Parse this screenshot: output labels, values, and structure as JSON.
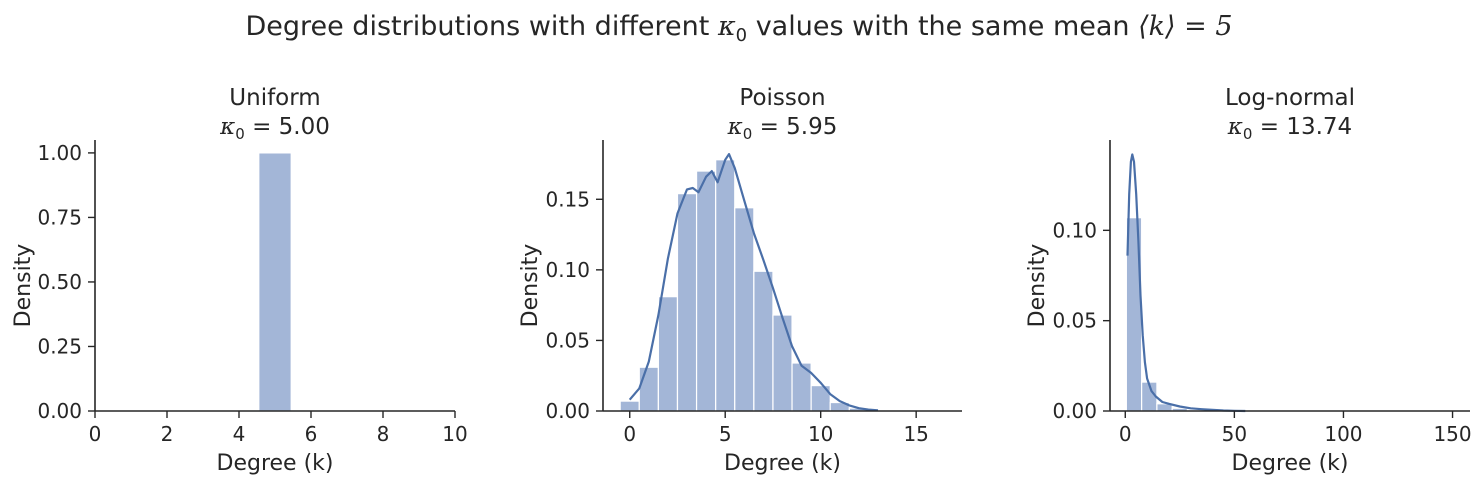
{
  "figure": {
    "title_prefix": "Degree distributions with different ",
    "title_kappa": "κ",
    "title_kappa_sub": "0",
    "title_middle": " values with the same mean ",
    "title_mean_expr": "⟨k⟩ = 5"
  },
  "colors": {
    "bar": "#a3b6d7",
    "line": "#4a6fa8",
    "axis": "#262626",
    "text": "#262626"
  },
  "chart_data": [
    {
      "type": "bar",
      "title_line1": "Uniform",
      "kappa_symbol": "κ",
      "kappa_sub": "0",
      "kappa_value": "= 5.00",
      "xlabel": "Degree (k)",
      "ylabel": "Density",
      "xlim": [
        0,
        10
      ],
      "ylim": [
        0,
        1.05
      ],
      "xticks": [
        0,
        2,
        4,
        6,
        8,
        10
      ],
      "xtick_labels": [
        "0",
        "2",
        "4",
        "6",
        "8",
        "10"
      ],
      "yticks": [
        0,
        0.25,
        0.5,
        0.75,
        1.0
      ],
      "ytick_labels": [
        "0.00",
        "0.25",
        "0.50",
        "0.75",
        "1.00"
      ],
      "bins": [
        [
          4.55,
          5.45,
          1.0
        ]
      ],
      "kde": []
    },
    {
      "type": "bar",
      "title_line1": "Poisson",
      "kappa_symbol": "κ",
      "kappa_sub": "0",
      "kappa_value": "= 5.95",
      "xlabel": "Degree (k)",
      "ylabel": "Density",
      "xlim": [
        -1.4,
        17.4
      ],
      "ylim": [
        0,
        0.192
      ],
      "xticks": [
        0,
        5,
        10,
        15
      ],
      "xtick_labels": [
        "0",
        "5",
        "10",
        "15"
      ],
      "yticks": [
        0,
        0.05,
        0.1,
        0.15
      ],
      "ytick_labels": [
        "0.00",
        "0.05",
        "0.10",
        "0.15"
      ],
      "bins": [
        [
          -0.5,
          0.5,
          0.007
        ],
        [
          0.5,
          1.5,
          0.031
        ],
        [
          1.5,
          2.5,
          0.081
        ],
        [
          2.5,
          3.5,
          0.154
        ],
        [
          3.5,
          4.5,
          0.17
        ],
        [
          4.5,
          5.5,
          0.178
        ],
        [
          5.5,
          6.5,
          0.144
        ],
        [
          6.5,
          7.5,
          0.099
        ],
        [
          7.5,
          8.5,
          0.068
        ],
        [
          8.5,
          9.5,
          0.034
        ],
        [
          9.5,
          10.5,
          0.018
        ],
        [
          10.5,
          11.5,
          0.006
        ],
        [
          11.5,
          12.5,
          0.002
        ]
      ],
      "kde": [
        [
          0,
          0.008
        ],
        [
          0.5,
          0.016
        ],
        [
          1,
          0.035
        ],
        [
          1.5,
          0.068
        ],
        [
          2,
          0.108
        ],
        [
          2.5,
          0.14
        ],
        [
          3,
          0.157
        ],
        [
          3.3,
          0.158
        ],
        [
          3.6,
          0.155
        ],
        [
          4,
          0.166
        ],
        [
          4.3,
          0.17
        ],
        [
          4.6,
          0.162
        ],
        [
          5,
          0.178
        ],
        [
          5.2,
          0.182
        ],
        [
          5.5,
          0.172
        ],
        [
          6,
          0.149
        ],
        [
          6.5,
          0.126
        ],
        [
          7,
          0.107
        ],
        [
          7.5,
          0.087
        ],
        [
          8,
          0.066
        ],
        [
          8.5,
          0.046
        ],
        [
          9,
          0.032
        ],
        [
          9.5,
          0.027
        ],
        [
          10,
          0.02
        ],
        [
          10.5,
          0.012
        ],
        [
          11,
          0.007
        ],
        [
          11.5,
          0.004
        ],
        [
          12,
          0.002
        ],
        [
          12.5,
          0.001
        ],
        [
          13,
          0.0004
        ]
      ]
    },
    {
      "type": "bar",
      "title_line1": "Log-normal",
      "kappa_symbol": "κ",
      "kappa_sub": "0",
      "kappa_value": "= 13.74",
      "xlabel": "Degree (k)",
      "ylabel": "Density",
      "xlim": [
        -7,
        158
      ],
      "ylim": [
        0,
        0.15
      ],
      "xticks": [
        0,
        50,
        100,
        150
      ],
      "xtick_labels": [
        "0",
        "50",
        "100",
        "150"
      ],
      "yticks": [
        0,
        0.05,
        0.1
      ],
      "ytick_labels": [
        "0.00",
        "0.05",
        "0.10"
      ],
      "bins": [
        [
          0.5,
          7.5,
          0.107
        ],
        [
          7.5,
          14.5,
          0.016
        ],
        [
          14.5,
          21.5,
          0.004
        ],
        [
          21.5,
          28.5,
          0.0015
        ],
        [
          28.5,
          35.5,
          0.0007
        ],
        [
          35.5,
          42.5,
          0.0003
        ],
        [
          42.5,
          49.5,
          0.0001
        ]
      ],
      "kde": [
        [
          1,
          0.086
        ],
        [
          1.8,
          0.12
        ],
        [
          2.6,
          0.138
        ],
        [
          3.2,
          0.142
        ],
        [
          4,
          0.138
        ],
        [
          5,
          0.12
        ],
        [
          6,
          0.094
        ],
        [
          7,
          0.064
        ],
        [
          8,
          0.042
        ],
        [
          9,
          0.027
        ],
        [
          10,
          0.018
        ],
        [
          12,
          0.011
        ],
        [
          14,
          0.008
        ],
        [
          17,
          0.005
        ],
        [
          20,
          0.004
        ],
        [
          25,
          0.0025
        ],
        [
          30,
          0.0015
        ],
        [
          35,
          0.001
        ],
        [
          40,
          0.0006
        ],
        [
          45,
          0.0003
        ],
        [
          50,
          0.0001
        ],
        [
          55,
          0
        ]
      ]
    }
  ]
}
